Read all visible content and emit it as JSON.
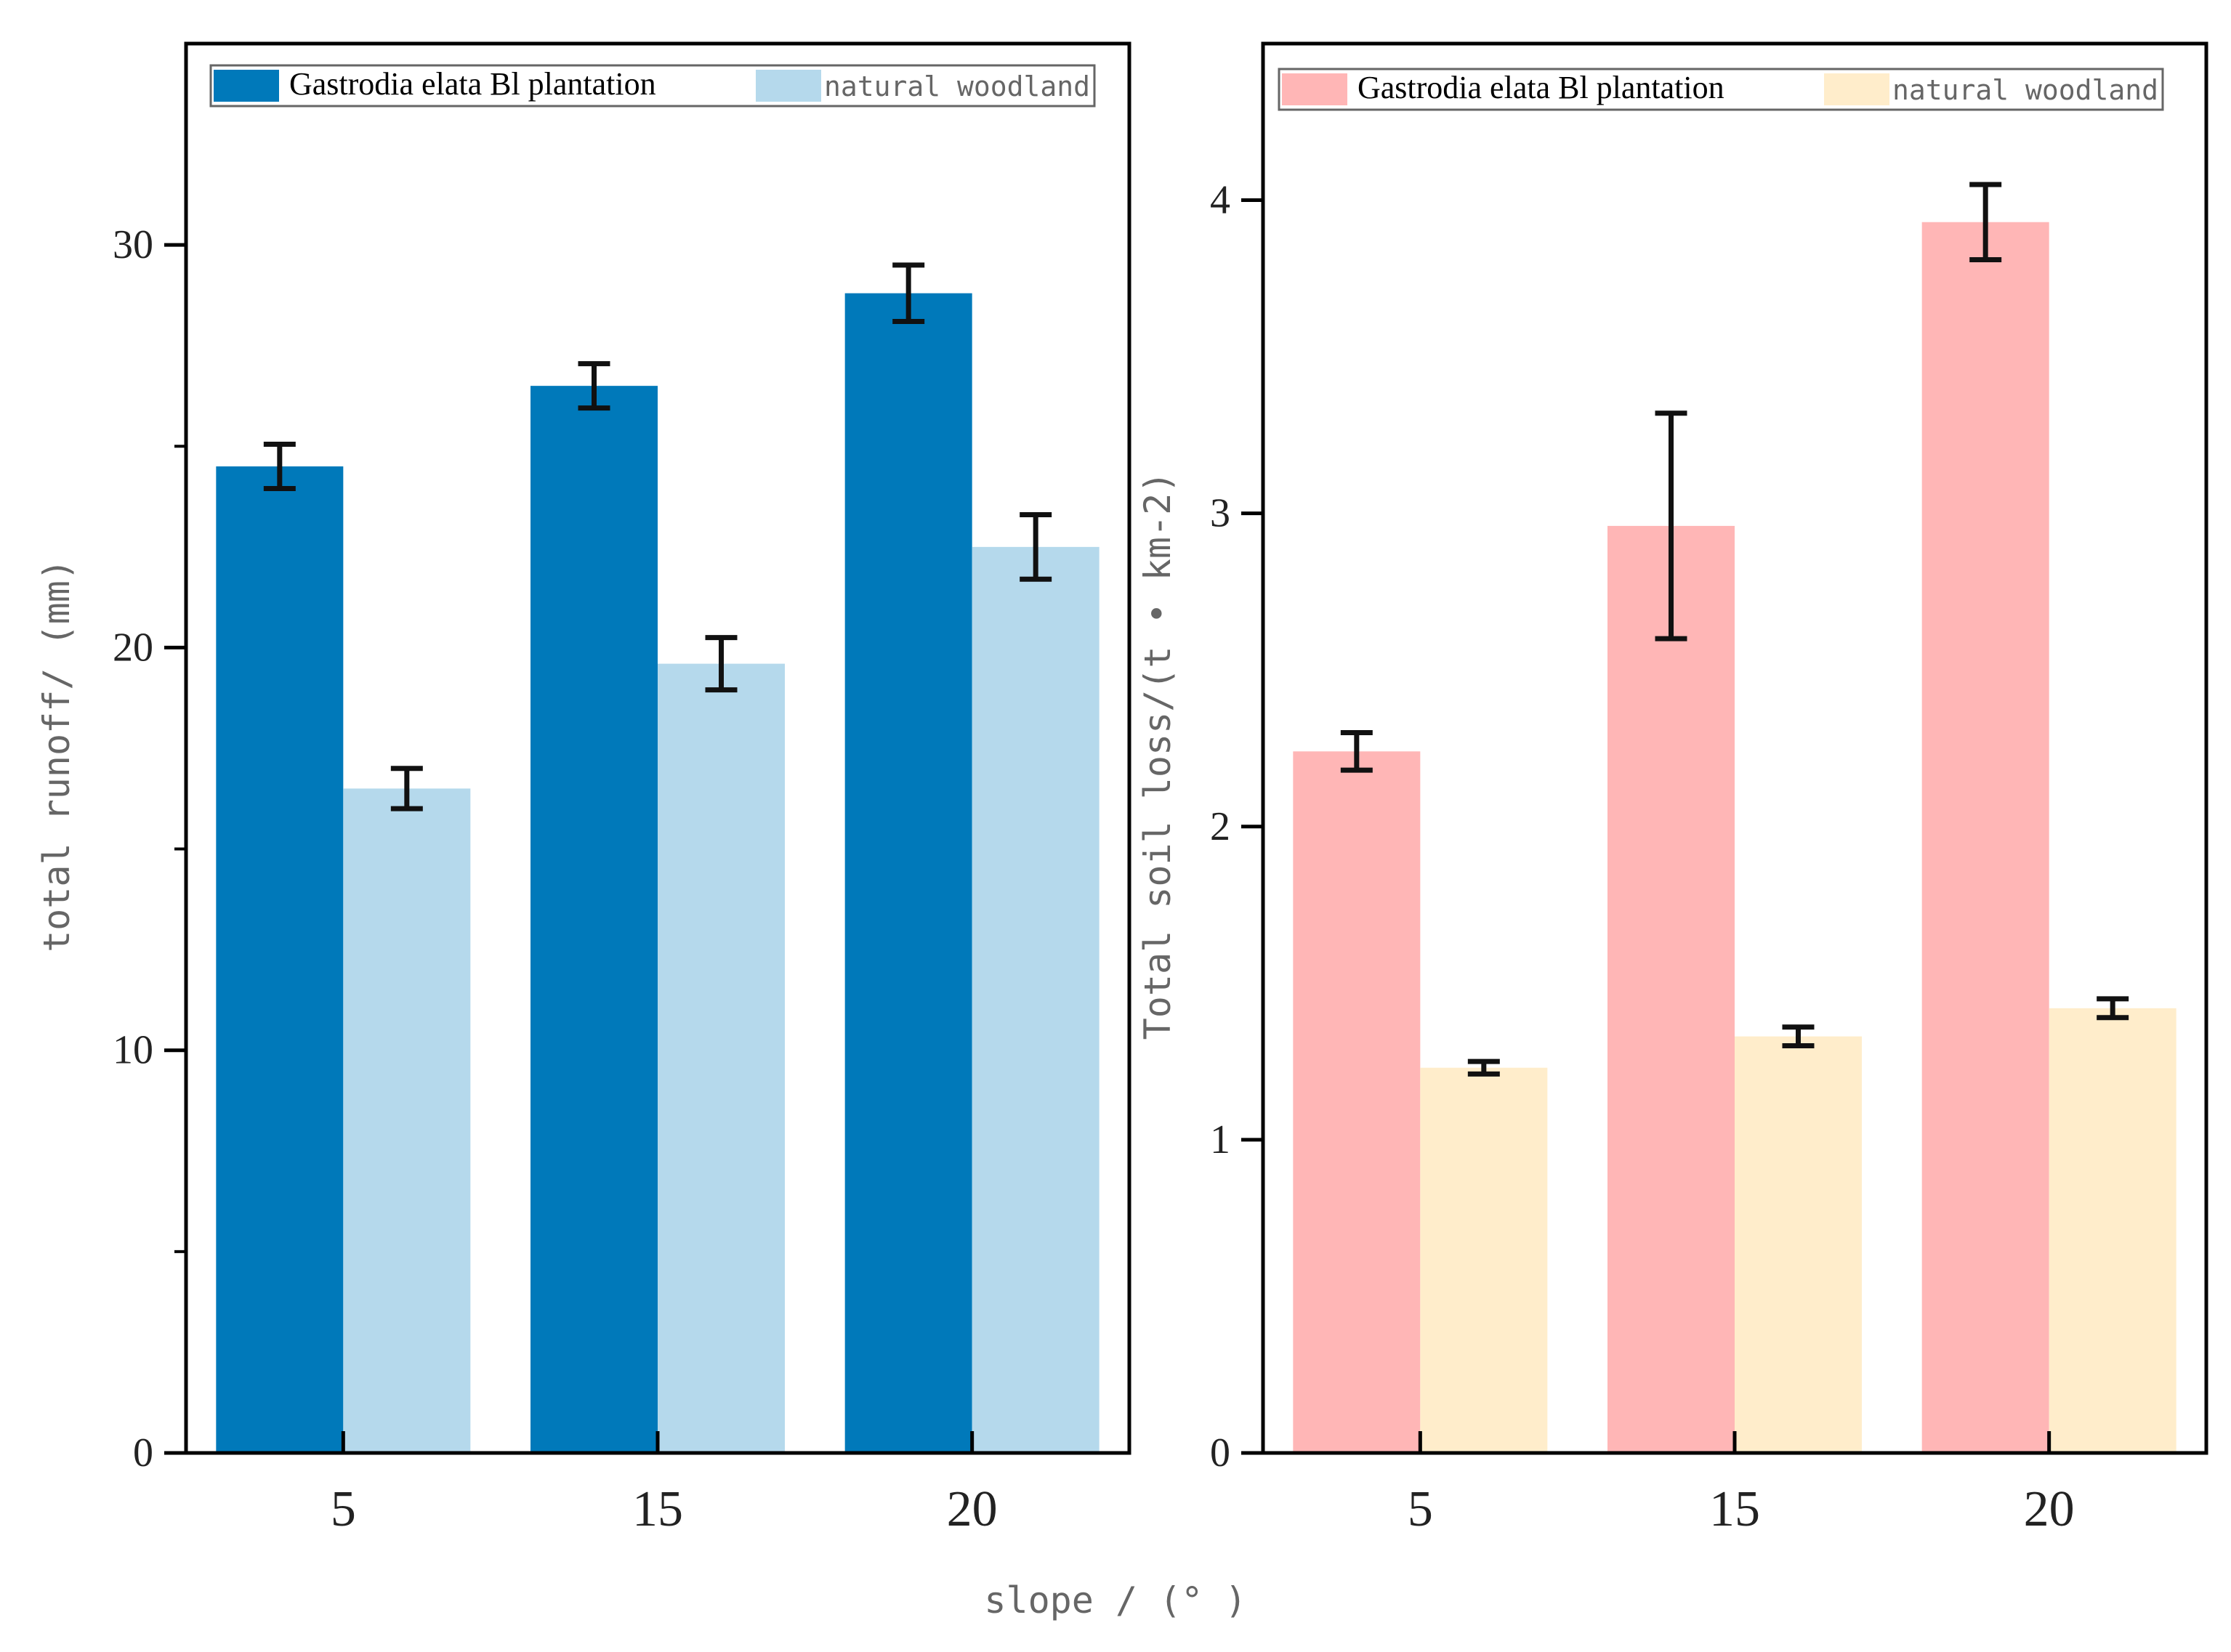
{
  "figure": {
    "xlabel": "slope / (° )"
  },
  "chart_data": [
    {
      "type": "bar",
      "categories": [
        "5",
        "15",
        "20"
      ],
      "ylabel": "total runoff/ (mm)",
      "ylim": [
        0,
        30
      ],
      "ylim_display_top": 35,
      "yticks": [
        "0",
        "10",
        "20",
        "30"
      ],
      "yminor": [
        5,
        15,
        25
      ],
      "legend_position": "top",
      "series": [
        {
          "name": "Gastrodia elata Bl plantation",
          "color": "#0079BA",
          "values": [
            24.5,
            26.5,
            28.8
          ],
          "errors": [
            0.55,
            0.55,
            0.7
          ]
        },
        {
          "name": "natural woodland",
          "color": "#B5D9EC",
          "values": [
            16.5,
            19.6,
            22.5
          ],
          "errors": [
            0.5,
            0.65,
            0.8
          ]
        }
      ]
    },
    {
      "type": "bar",
      "categories": [
        "5",
        "15",
        "20"
      ],
      "ylabel": "Total soil loss/(t • km-2)",
      "ylim": [
        0,
        4
      ],
      "ylim_display_top": 4.5,
      "yticks": [
        "0",
        "1",
        "2",
        "3",
        "4"
      ],
      "legend_position": "top",
      "series": [
        {
          "name": "Gastrodia elata Bl plantation",
          "color": "#FFB6B6",
          "values": [
            2.24,
            2.96,
            3.93
          ],
          "errors": [
            0.06,
            0.36,
            0.12
          ]
        },
        {
          "name": "natural woodland",
          "color": "#FFEDCB",
          "values": [
            1.23,
            1.33,
            1.42
          ],
          "errors": [
            0.02,
            0.03,
            0.03
          ]
        }
      ]
    }
  ]
}
